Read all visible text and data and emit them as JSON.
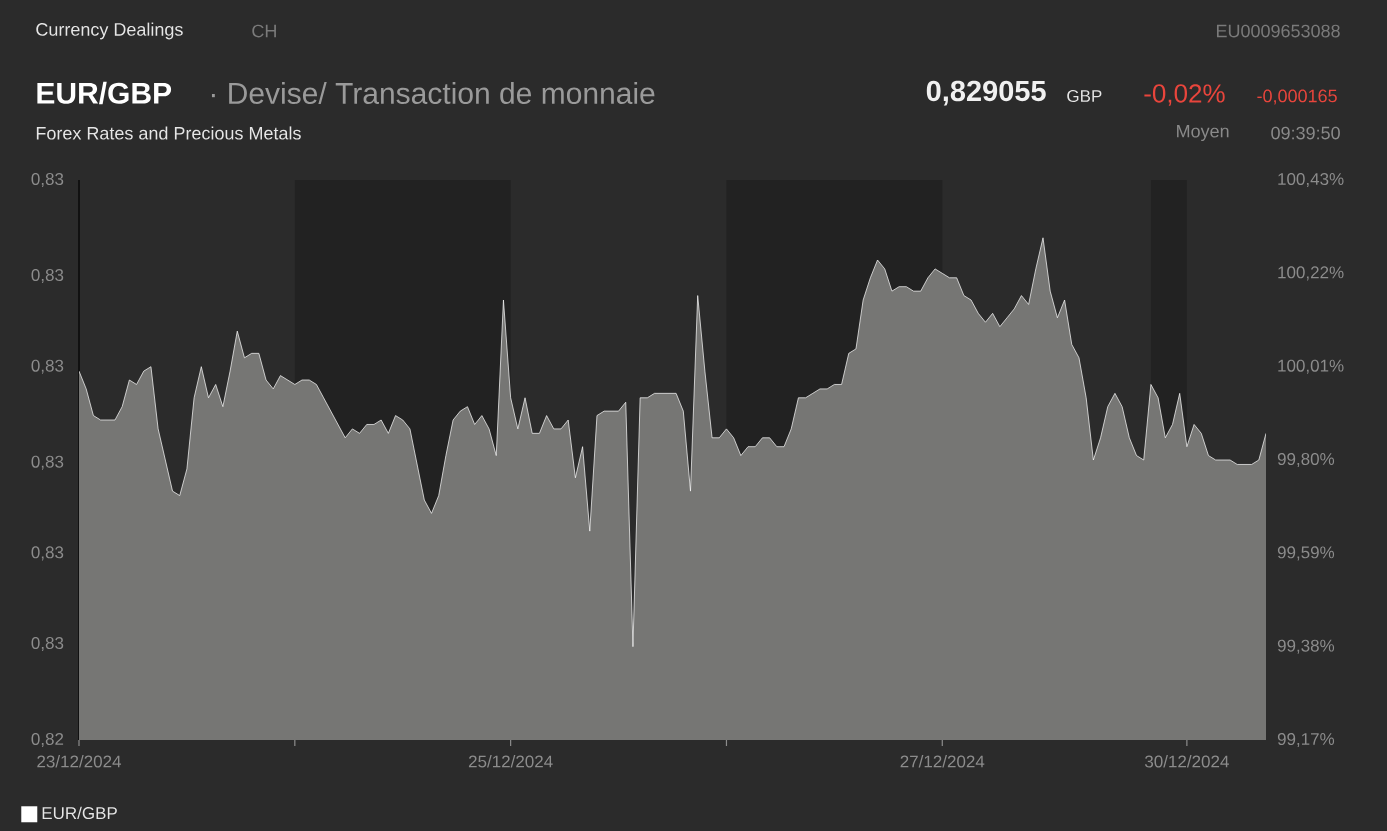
{
  "chart_data": {
    "type": "area",
    "title": "EUR/GBP",
    "subtitle": "· Devise/ Transaction de monnaie",
    "annotations": [
      "Currency Dealings",
      "CH",
      "EU0009653088",
      "0,829055",
      "GBP",
      "-0,02%",
      "-0,000165",
      "Forex Rates and Precious Metals",
      "Moyen",
      "09:39:50"
    ],
    "categories": [
      "23/12/2024",
      null,
      null,
      null,
      null,
      null,
      null,
      null,
      null,
      null,
      null,
      null,
      null,
      null,
      null,
      null,
      null,
      null,
      null,
      null,
      null,
      null,
      null,
      null,
      null,
      null,
      null,
      null,
      null,
      null,
      null,
      null,
      null,
      null,
      null,
      null,
      null,
      null,
      null,
      null,
      null,
      null,
      null,
      null,
      null,
      null,
      null,
      null,
      null,
      null,
      null,
      null,
      null,
      null,
      null,
      null,
      null,
      null,
      null,
      null,
      "25/12/2024",
      null,
      null,
      null,
      null,
      null,
      null,
      null,
      null,
      null,
      null,
      null,
      null,
      null,
      null,
      null,
      null,
      null,
      null,
      null,
      null,
      null,
      null,
      null,
      null,
      null,
      null,
      null,
      null,
      null,
      null,
      null,
      null,
      null,
      null,
      null,
      null,
      null,
      null,
      null,
      null,
      null,
      null,
      null,
      null,
      null,
      null,
      null,
      null,
      null,
      null,
      null,
      null,
      null,
      null,
      null,
      null,
      null,
      null,
      null,
      "27/12/2024",
      null,
      null,
      null,
      null,
      null,
      null,
      null,
      null,
      null,
      null,
      null,
      null,
      null,
      null,
      null,
      null,
      null,
      null,
      null,
      null,
      null,
      null,
      null,
      null,
      null,
      null,
      null,
      null,
      null,
      null,
      null,
      null,
      null,
      "30/12/2024",
      null,
      null,
      null,
      null,
      null,
      null,
      null,
      null,
      null,
      null,
      null
    ],
    "series": [
      {
        "name": "EUR/GBP",
        "color": "#ffffff",
        "axis": "y2",
        "values": [
          100.0,
          99.96,
          99.9,
          99.89,
          99.89,
          99.89,
          99.92,
          99.98,
          99.97,
          100.0,
          100.01,
          99.87,
          99.8,
          99.73,
          99.72,
          99.78,
          99.94,
          100.01,
          99.94,
          99.97,
          99.92,
          100.0,
          100.09,
          100.03,
          100.04,
          100.04,
          99.98,
          99.96,
          99.99,
          99.98,
          99.97,
          99.98,
          99.98,
          99.97,
          99.94,
          99.91,
          99.88,
          99.85,
          99.87,
          99.86,
          99.88,
          99.88,
          99.89,
          99.86,
          99.9,
          99.89,
          99.87,
          99.79,
          99.71,
          99.68,
          99.72,
          99.81,
          99.89,
          99.91,
          99.92,
          99.88,
          99.9,
          99.87,
          99.81,
          100.16,
          99.94,
          99.87,
          99.94,
          99.86,
          99.86,
          99.9,
          99.87,
          99.87,
          99.89,
          99.76,
          99.83,
          99.64,
          99.9,
          99.91,
          99.91,
          99.91,
          99.93,
          99.38,
          99.94,
          99.94,
          99.95,
          99.95,
          99.95,
          99.95,
          99.91,
          99.73,
          100.17,
          100.0,
          99.85,
          99.85,
          99.87,
          99.85,
          99.81,
          99.83,
          99.83,
          99.85,
          99.85,
          99.83,
          99.83,
          99.87,
          99.94,
          99.94,
          99.95,
          99.96,
          99.96,
          99.97,
          99.97,
          100.04,
          100.05,
          100.16,
          100.21,
          100.25,
          100.23,
          100.18,
          100.19,
          100.19,
          100.18,
          100.18,
          100.21,
          100.23,
          100.22,
          100.21,
          100.21,
          100.17,
          100.16,
          100.13,
          100.11,
          100.13,
          100.1,
          100.12,
          100.14,
          100.17,
          100.15,
          100.23,
          100.3,
          100.18,
          100.12,
          100.16,
          100.06,
          100.03,
          99.94,
          99.8,
          99.85,
          99.92,
          99.95,
          99.92,
          99.85,
          99.81,
          99.8,
          99.97,
          99.94,
          99.85,
          99.88,
          99.95,
          99.83,
          99.88,
          99.86,
          99.81,
          99.8,
          99.8,
          99.8,
          99.79,
          99.79,
          99.79,
          99.8,
          99.86
        ]
      }
    ],
    "ylim": [
      0.8234,
      0.8339
    ],
    "yticks": [
      {
        "value": 0.8234,
        "label": "0,82"
      },
      {
        "value": 0.8252,
        "label": "0,83"
      },
      {
        "value": 0.8269,
        "label": "0,83"
      },
      {
        "value": 0.8286,
        "label": "0,83"
      },
      {
        "value": 0.8304,
        "label": "0,83"
      },
      {
        "value": 0.8321,
        "label": "0,83"
      },
      {
        "value": 0.8339,
        "label": "0,83"
      }
    ],
    "y2lim": [
      99.17,
      100.43
    ],
    "y2ticks": [
      {
        "value": 99.17,
        "label": "99,17%"
      },
      {
        "value": 99.38,
        "label": "99,38%"
      },
      {
        "value": 99.59,
        "label": "99,59%"
      },
      {
        "value": 99.8,
        "label": "99,80%"
      },
      {
        "value": 100.01,
        "label": "100,01%"
      },
      {
        "value": 100.22,
        "label": "100,22%"
      },
      {
        "value": 100.43,
        "label": "100,43%"
      }
    ],
    "legend": "bottom left"
  }
}
